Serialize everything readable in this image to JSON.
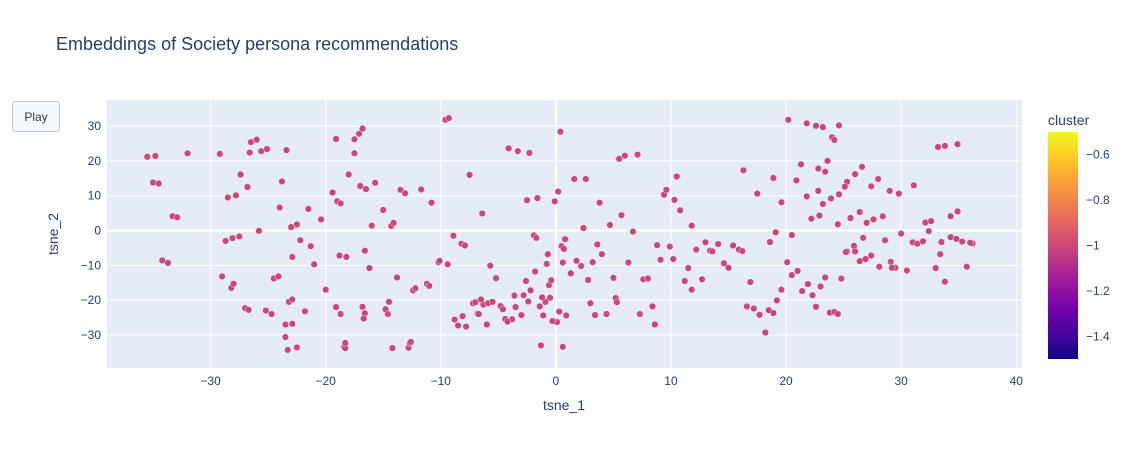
{
  "chart_data": {
    "type": "scatter",
    "title": "Embeddings of Society persona recommendations",
    "xlabel": "tsne_1",
    "ylabel": "tsne_2",
    "xlim": [
      -39,
      40.5
    ],
    "ylim": [
      -39.5,
      37.5
    ],
    "x_ticks": [
      -30,
      -20,
      -10,
      0,
      10,
      20,
      30,
      40
    ],
    "x_tick_labels": [
      "−30",
      "−20",
      "−10",
      "0",
      "10",
      "20",
      "30",
      "40"
    ],
    "y_ticks": [
      -30,
      -20,
      -10,
      0,
      10,
      20,
      30
    ],
    "y_tick_labels": [
      "−30",
      "−20",
      "−10",
      "0",
      "10",
      "20",
      "30"
    ],
    "grid": true,
    "marker_color": "#cc4778",
    "colorbar": {
      "title": "cluster",
      "range": [
        -1.5,
        -0.5
      ],
      "ticks": [
        -0.6,
        -0.8,
        -1,
        -1.2,
        -1.4
      ],
      "tick_labels": [
        "−0.6",
        "−0.8",
        "−1",
        "−1.2",
        "−1.4"
      ],
      "colors": [
        "#0d0887",
        "#46039f",
        "#7201a8",
        "#9c179e",
        "#bd3786",
        "#d8576b",
        "#ed7953",
        "#fb9f3a",
        "#fdca26",
        "#f0f921"
      ]
    },
    "points": [
      [
        -35.5,
        21.2
      ],
      [
        -34.8,
        21.4
      ],
      [
        -35,
        13.8
      ],
      [
        -34.5,
        13.5
      ],
      [
        -34.2,
        -8.6
      ],
      [
        -33.7,
        -9.3
      ],
      [
        -33.3,
        4.1
      ],
      [
        -32.9,
        3.8
      ],
      [
        -32,
        22.2
      ],
      [
        -29.2,
        22
      ],
      [
        -29,
        -13.2
      ],
      [
        -28.7,
        -3
      ],
      [
        -28.5,
        9.5
      ],
      [
        -28.2,
        -16.5
      ],
      [
        -28,
        -15.3
      ],
      [
        -28.1,
        -2.2
      ],
      [
        -27.8,
        10.1
      ],
      [
        -27.4,
        16.1
      ],
      [
        -27.5,
        -1.7
      ],
      [
        -27,
        -22.3
      ],
      [
        -26.7,
        -22.8
      ],
      [
        -26.8,
        12.5
      ],
      [
        -26.5,
        25.4
      ],
      [
        -26.6,
        22.4
      ],
      [
        -26,
        26.1
      ],
      [
        -25.6,
        22.8
      ],
      [
        -25.1,
        23.4
      ],
      [
        -25.8,
        -0.1
      ],
      [
        -25.2,
        -23
      ],
      [
        -24.7,
        -24
      ],
      [
        -24.5,
        -13.8
      ],
      [
        -24.1,
        -13.2
      ],
      [
        -24,
        6.6
      ],
      [
        -23.8,
        14.1
      ],
      [
        -23.4,
        23.1
      ],
      [
        -23.5,
        -27
      ],
      [
        -22.9,
        -26.8
      ],
      [
        -23.2,
        -20.5
      ],
      [
        -22.9,
        -19.8
      ],
      [
        -23.3,
        -34.3
      ],
      [
        -22.5,
        -33.6
      ],
      [
        -23.5,
        -30.6
      ],
      [
        -23,
        1
      ],
      [
        -22.9,
        -7.6
      ],
      [
        -22.5,
        1.7
      ],
      [
        -22.2,
        -2.8
      ],
      [
        -21.8,
        -23.2
      ],
      [
        -21.5,
        6.2
      ],
      [
        -21.3,
        -4.5
      ],
      [
        -21,
        -9.7
      ],
      [
        -20.4,
        3.2
      ],
      [
        -20,
        -17
      ],
      [
        -19.4,
        10.9
      ],
      [
        -19.1,
        -22
      ],
      [
        -19,
        8.4
      ],
      [
        -18.7,
        7.8
      ],
      [
        -18.8,
        -7.2
      ],
      [
        -18.7,
        -24
      ],
      [
        -18.4,
        -33.5
      ],
      [
        -18.3,
        -33.8
      ],
      [
        -18.3,
        -32.3
      ],
      [
        -18.2,
        -7.6
      ],
      [
        -19.1,
        26.3
      ],
      [
        -18,
        16.1
      ],
      [
        -17.5,
        22.2
      ],
      [
        -17.1,
        27.8
      ],
      [
        -16.8,
        29.3
      ],
      [
        -17.5,
        26.2
      ],
      [
        -17,
        12.8
      ],
      [
        -16.5,
        11.9
      ],
      [
        -16.6,
        -5.8
      ],
      [
        -16.2,
        -10.8
      ],
      [
        -16.6,
        -23.8
      ],
      [
        -16.7,
        -25.3
      ],
      [
        -16.8,
        -21.9
      ],
      [
        -16,
        1.4
      ],
      [
        -15.7,
        13.7
      ],
      [
        -15,
        5.9
      ],
      [
        -14.8,
        -22.6
      ],
      [
        -14.5,
        -20.5
      ],
      [
        -14.2,
        -33.8
      ],
      [
        -14.6,
        -24
      ],
      [
        -14.3,
        1.3
      ],
      [
        -14.1,
        2.2
      ],
      [
        -13.8,
        -13.5
      ],
      [
        -13.5,
        11.7
      ],
      [
        -13.1,
        10.7
      ],
      [
        -12.8,
        -33.7
      ],
      [
        -12.7,
        -32.3
      ],
      [
        -12.6,
        -32
      ],
      [
        -12.4,
        -17.2
      ],
      [
        -12.2,
        -16.6
      ],
      [
        -11.7,
        11.8
      ],
      [
        -11.2,
        -15.3
      ],
      [
        -11,
        -15.9
      ],
      [
        -10.8,
        8
      ],
      [
        -10.2,
        -9.1
      ],
      [
        -10.1,
        -8.7
      ],
      [
        -9.6,
        31.8
      ],
      [
        -9.3,
        32.3
      ],
      [
        -9.4,
        -9.7
      ],
      [
        -8.9,
        -1.5
      ],
      [
        -8.2,
        -3.8
      ],
      [
        -8.8,
        -25.6
      ],
      [
        -8.5,
        -27.3
      ],
      [
        -7.9,
        -4.3
      ],
      [
        -7.5,
        16
      ],
      [
        -6.4,
        4.9
      ],
      [
        -6,
        -27
      ],
      [
        -5.7,
        -10.1
      ],
      [
        -4.8,
        -21.7
      ],
      [
        -4.1,
        23.6
      ],
      [
        -3.8,
        -25.5
      ],
      [
        -3.3,
        22.8
      ],
      [
        -2.8,
        -18.6
      ],
      [
        -2.5,
        8.7
      ],
      [
        -2.3,
        22.3
      ],
      [
        -1.9,
        -1.4
      ],
      [
        -1.7,
        -2.1
      ],
      [
        -1.6,
        9.3
      ],
      [
        -1.3,
        -33
      ],
      [
        -1.1,
        -24.4
      ],
      [
        -0.7,
        -6.8
      ],
      [
        -0.8,
        -9.6
      ],
      [
        -0.6,
        -15.7
      ],
      [
        -0.4,
        -14.3
      ],
      [
        -0.5,
        -19.3
      ],
      [
        -0.1,
        8.4
      ],
      [
        0.1,
        -26.3
      ],
      [
        0.2,
        11.2
      ],
      [
        0.5,
        -4.5
      ],
      [
        0.6,
        -33.4
      ],
      [
        0.7,
        -5.3
      ],
      [
        0.4,
        28.4
      ],
      [
        0.8,
        -2.5
      ],
      [
        0.9,
        -24.4
      ],
      [
        1.3,
        -12.3
      ],
      [
        1.6,
        14.8
      ],
      [
        1.8,
        -8.7
      ],
      [
        2.2,
        -10.2
      ],
      [
        2.4,
        0.7
      ],
      [
        2.6,
        14.8
      ],
      [
        2.8,
        -14.2
      ],
      [
        3,
        -20.9
      ],
      [
        3.2,
        -9.1
      ],
      [
        3.4,
        -24.3
      ],
      [
        3.6,
        -4
      ],
      [
        3.8,
        8
      ],
      [
        4,
        -6.8
      ],
      [
        4.4,
        -24
      ],
      [
        4.7,
        1.6
      ],
      [
        5,
        -13.6
      ],
      [
        5.2,
        -19.4
      ],
      [
        5.3,
        -20.6
      ],
      [
        5.5,
        20.6
      ],
      [
        5.7,
        4.4
      ],
      [
        6,
        21.5
      ],
      [
        6.3,
        -9.2
      ],
      [
        6.7,
        -0.3
      ],
      [
        7.1,
        21.8
      ],
      [
        7.3,
        -24
      ],
      [
        7.6,
        -14
      ],
      [
        8,
        -13.8
      ],
      [
        8.4,
        -21.8
      ],
      [
        8.6,
        -27
      ],
      [
        8.8,
        -4.2
      ],
      [
        9.1,
        -8.4
      ],
      [
        9.4,
        10.3
      ],
      [
        9.6,
        11.7
      ],
      [
        9.9,
        -4.6
      ],
      [
        10.3,
        8.8
      ],
      [
        10.5,
        15.5
      ],
      [
        10.2,
        -8.2
      ],
      [
        10.8,
        5.8
      ],
      [
        11.2,
        -14.5
      ],
      [
        11.8,
        1.4
      ],
      [
        11.8,
        -17
      ],
      [
        11.5,
        -10.8
      ],
      [
        12.2,
        -5.5
      ],
      [
        12.7,
        -14
      ],
      [
        13,
        -3.4
      ],
      [
        13.4,
        -5.8
      ],
      [
        13.6,
        -6
      ],
      [
        14.1,
        -3.9
      ],
      [
        14.6,
        -9.4
      ],
      [
        15,
        -10.7
      ],
      [
        15.4,
        -4.3
      ],
      [
        15.9,
        -5.5
      ],
      [
        16.2,
        -5.9
      ],
      [
        16.6,
        -21.8
      ],
      [
        16.9,
        -14.8
      ],
      [
        17.2,
        -22.4
      ],
      [
        17.7,
        -24.2
      ],
      [
        18.2,
        -29.3
      ],
      [
        18.5,
        -22.9
      ],
      [
        18.9,
        -23.7
      ],
      [
        19.2,
        -20.1
      ],
      [
        19.6,
        -17
      ],
      [
        20.1,
        -9.1
      ],
      [
        20.5,
        -12.8
      ],
      [
        21,
        -11.6
      ],
      [
        21.4,
        -17.4
      ],
      [
        21.9,
        -15.4
      ],
      [
        22.3,
        -18.6
      ],
      [
        22.6,
        -21.9
      ],
      [
        23,
        -16.1
      ],
      [
        23.4,
        -13.5
      ],
      [
        23.8,
        -23.6
      ],
      [
        24.2,
        -23.4
      ],
      [
        24.5,
        -24
      ],
      [
        24.8,
        -13.8
      ],
      [
        25.3,
        -6
      ],
      [
        25.9,
        -4.4
      ],
      [
        26.4,
        -8.8
      ],
      [
        26.9,
        -8.2
      ],
      [
        27.4,
        -7.2
      ],
      [
        28.1,
        -10.4
      ],
      [
        28.6,
        -2.8
      ],
      [
        29.1,
        -9
      ],
      [
        29.5,
        -10.7
      ],
      [
        30,
        -0.9
      ],
      [
        30.5,
        -11.5
      ],
      [
        31,
        -3.4
      ],
      [
        31.4,
        -3.8
      ],
      [
        31.9,
        -3.1
      ],
      [
        32.4,
        -0.2
      ],
      [
        33,
        -10.8
      ],
      [
        33.4,
        -6.8
      ],
      [
        33.8,
        -14.7
      ],
      [
        34.3,
        -1.9
      ],
      [
        34.8,
        -2.4
      ],
      [
        35.3,
        -3.2
      ],
      [
        35.7,
        -10.4
      ],
      [
        36.2,
        -3.7
      ],
      [
        -7.2,
        -20.9
      ],
      [
        -7,
        -20.6
      ],
      [
        -6.8,
        -23.9
      ],
      [
        -6.3,
        -21.3
      ],
      [
        -5.2,
        -13.7
      ],
      [
        -4.4,
        -25.4
      ],
      [
        -3.5,
        -22
      ],
      [
        -2.2,
        -17.2
      ],
      [
        -1.4,
        -21.8
      ],
      [
        -6.7,
        -24
      ],
      [
        -5.9,
        -20.9
      ],
      [
        -4.6,
        -22.6
      ],
      [
        -3,
        -24.3
      ],
      [
        -2.6,
        -14.5
      ],
      [
        -1.8,
        -11.8
      ],
      [
        -0.9,
        -20.5
      ],
      [
        -0.3,
        -26
      ],
      [
        0.3,
        -23.3
      ],
      [
        -8.1,
        -24.6
      ],
      [
        -7.8,
        -27.6
      ],
      [
        -6.5,
        -19.8
      ],
      [
        -5.5,
        -20.5
      ],
      [
        -4.2,
        -26.2
      ],
      [
        -3.6,
        -18.7
      ],
      [
        -2.4,
        -20.4
      ],
      [
        -1.2,
        -19.2
      ],
      [
        0.6,
        -9.2
      ],
      [
        20.2,
        31.8
      ],
      [
        21.8,
        30.8
      ],
      [
        22.6,
        30.1
      ],
      [
        23.2,
        29.7
      ],
      [
        24.6,
        30.2
      ],
      [
        24,
        26.8
      ],
      [
        24.2,
        26
      ],
      [
        23.6,
        20
      ],
      [
        22.8,
        17.8
      ],
      [
        23.4,
        16.9
      ],
      [
        25.3,
        14
      ],
      [
        26,
        16.2
      ],
      [
        26.6,
        18.3
      ],
      [
        27.4,
        12.7
      ],
      [
        28,
        14.8
      ],
      [
        29,
        11.4
      ],
      [
        29.8,
        10.6
      ],
      [
        31.1,
        13
      ],
      [
        32.1,
        2.3
      ],
      [
        32.6,
        2.7
      ],
      [
        33.2,
        24
      ],
      [
        33.8,
        24.3
      ],
      [
        34.9,
        24.8
      ],
      [
        34.9,
        5.5
      ],
      [
        34.3,
        4.1
      ],
      [
        33.5,
        -3.3
      ],
      [
        36,
        -3.5
      ],
      [
        21.8,
        9.8
      ],
      [
        22.8,
        11.4
      ],
      [
        23.2,
        7.6
      ],
      [
        23.9,
        9.2
      ],
      [
        24.6,
        10.4
      ],
      [
        25.1,
        12.6
      ],
      [
        25.6,
        3.6
      ],
      [
        26.4,
        5.3
      ],
      [
        27,
        2.2
      ],
      [
        27.6,
        3.2
      ],
      [
        28.4,
        4.1
      ],
      [
        22.2,
        3.4
      ],
      [
        22.9,
        4.3
      ],
      [
        24.5,
        1.8
      ],
      [
        25.2,
        -6.2
      ],
      [
        26,
        -6
      ],
      [
        26.7,
        -2.1
      ],
      [
        29.2,
        -10.7
      ],
      [
        20.5,
        -1.3
      ],
      [
        20.9,
        14.4
      ],
      [
        21.3,
        19
      ],
      [
        19.1,
        -0.5
      ],
      [
        18.6,
        -3.3
      ],
      [
        19.6,
        8.1
      ],
      [
        18.9,
        15.1
      ],
      [
        17.5,
        10.6
      ],
      [
        16.3,
        17.3
      ]
    ]
  }
}
